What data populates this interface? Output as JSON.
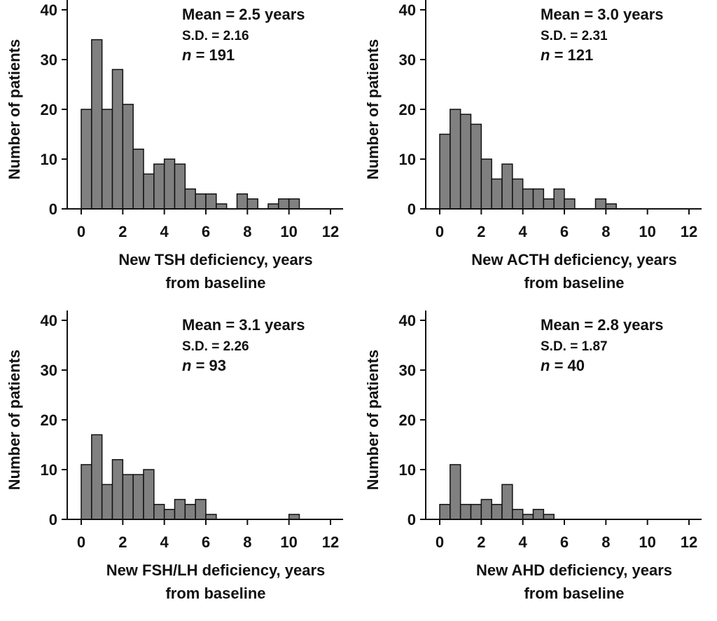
{
  "chart_data": [
    {
      "type": "bar",
      "ylabel": "Number of patients",
      "xlabel_line1": "New TSH deficiency, years",
      "xlabel_line2": "from baseline",
      "stats": {
        "mean": "Mean = 2.5 years",
        "sd": "S.D. = 2.16",
        "n_label": "n",
        "n_value": " = 191"
      },
      "bin_width": 0.5,
      "x_start": 0,
      "values": [
        20,
        34,
        20,
        28,
        21,
        12,
        7,
        9,
        10,
        9,
        4,
        3,
        3,
        1,
        0,
        3,
        2,
        0,
        1,
        2,
        2
      ],
      "xlim": [
        0,
        12
      ],
      "ylim": [
        0,
        40
      ],
      "xticks": [
        "0",
        "2",
        "4",
        "6",
        "8",
        "10",
        "12"
      ],
      "yticks": [
        "0",
        "10",
        "20",
        "30",
        "40"
      ],
      "bar_color": "#808080"
    },
    {
      "type": "bar",
      "ylabel": "Number of patients",
      "xlabel_line1": "New ACTH deficiency, years",
      "xlabel_line2": "from baseline",
      "stats": {
        "mean": "Mean = 3.0 years",
        "sd": "S.D. = 2.31",
        "n_label": "n",
        "n_value": " = 121"
      },
      "bin_width": 0.5,
      "x_start": 0,
      "values": [
        15,
        20,
        19,
        17,
        10,
        6,
        9,
        6,
        4,
        4,
        2,
        4,
        2,
        0,
        0,
        2,
        1
      ],
      "xlim": [
        0,
        12
      ],
      "ylim": [
        0,
        40
      ],
      "xticks": [
        "0",
        "2",
        "4",
        "6",
        "8",
        "10",
        "12"
      ],
      "yticks": [
        "0",
        "10",
        "20",
        "30",
        "40"
      ],
      "bar_color": "#808080"
    },
    {
      "type": "bar",
      "ylabel": "Number of patients",
      "xlabel_line1": "New FSH/LH deficiency, years",
      "xlabel_line2": "from baseline",
      "stats": {
        "mean": "Mean = 3.1 years",
        "sd": "S.D. = 2.26",
        "n_label": "n",
        "n_value": " = 93"
      },
      "bin_width": 0.5,
      "x_start": 0,
      "values": [
        11,
        17,
        7,
        12,
        9,
        9,
        10,
        3,
        2,
        4,
        3,
        4,
        1,
        0,
        0,
        0,
        0,
        0,
        0,
        0,
        1
      ],
      "xlim": [
        0,
        12
      ],
      "ylim": [
        0,
        40
      ],
      "xticks": [
        "0",
        "2",
        "4",
        "6",
        "8",
        "10",
        "12"
      ],
      "yticks": [
        "0",
        "10",
        "20",
        "30",
        "40"
      ],
      "bar_color": "#808080"
    },
    {
      "type": "bar",
      "ylabel": "Number of patients",
      "xlabel_line1": "New AHD deficiency, years",
      "xlabel_line2": "from baseline",
      "stats": {
        "mean": "Mean = 2.8 years",
        "sd": "S.D. = 1.87",
        "n_label": "n",
        "n_value": " = 40"
      },
      "bin_width": 0.5,
      "x_start": 0,
      "values": [
        3,
        11,
        3,
        3,
        4,
        3,
        7,
        2,
        1,
        2,
        1
      ],
      "xlim": [
        0,
        12
      ],
      "ylim": [
        0,
        40
      ],
      "xticks": [
        "0",
        "2",
        "4",
        "6",
        "8",
        "10",
        "12"
      ],
      "yticks": [
        "0",
        "10",
        "20",
        "30",
        "40"
      ],
      "bar_color": "#808080"
    }
  ]
}
